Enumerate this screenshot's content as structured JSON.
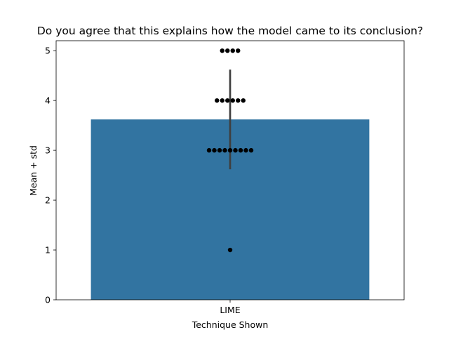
{
  "chart_data": {
    "type": "bar",
    "title": "Do you agree that this explains how the model came to its conclusion?",
    "xlabel": "Technique Shown",
    "ylabel": "Mean + std",
    "categories": [
      "LIME"
    ],
    "values": [
      3.62
    ],
    "error_bars": [
      {
        "category": "LIME",
        "low": 2.62,
        "high": 4.62
      }
    ],
    "swarm_points": [
      {
        "y": 5,
        "count": 4
      },
      {
        "y": 4,
        "count": 6
      },
      {
        "y": 3,
        "count": 9
      },
      {
        "y": 1,
        "count": 1
      }
    ],
    "ylim": [
      0,
      5.2
    ],
    "yticks": [
      "0",
      "1",
      "2",
      "3",
      "4",
      "5"
    ],
    "grid": false,
    "colors": {
      "bar": "#3274a1",
      "error_bar": "#3f3f3f",
      "points": "#000000",
      "axes": "#000000"
    }
  }
}
